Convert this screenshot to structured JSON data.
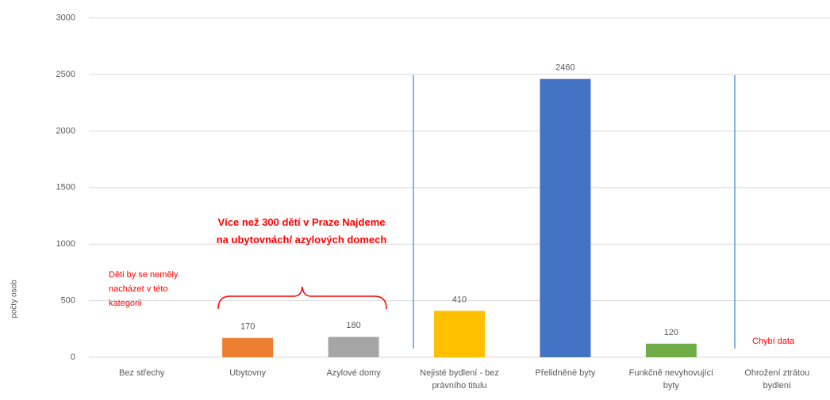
{
  "chart_data": {
    "type": "bar",
    "y_label": "počty osob",
    "categories": [
      "Bez střechy",
      "Ubytovny",
      "Azylové domy",
      "Nejisté bydlení - bez právního titulu",
      "Přelidněné byty",
      "Funkčně nevyhovující byty",
      "Ohrožení ztrátou bydlení"
    ],
    "values": [
      null,
      170,
      180,
      410,
      2460,
      120,
      null
    ],
    "colors": [
      null,
      "#ed7d31",
      "#a5a5a5",
      "#ffc000",
      "#4472c4",
      "#70ad47",
      null
    ],
    "ylim": [
      0,
      3000
    ],
    "yticks": [
      0,
      500,
      1000,
      1500,
      2000,
      2500,
      3000
    ],
    "grid": true,
    "annotations": [
      "Děti by se neměly nacházet v této kategorii",
      "Více než 300 dětí v Praze Najdeme na ubytovnách/ azylových domech",
      "Chybí data"
    ]
  }
}
